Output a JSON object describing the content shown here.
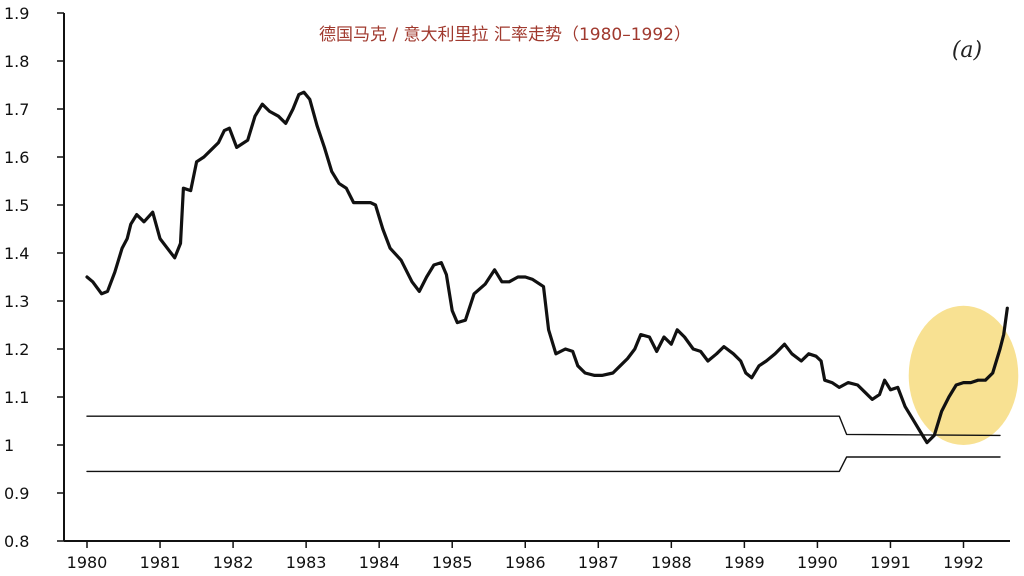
{
  "chart_data": {
    "type": "line",
    "title": "德国马克 / 意大利里拉 汇率走势（1980–1992）",
    "panel_label": "(a)",
    "xlabel": "",
    "ylabel": "",
    "xlim": [
      1980,
      1992.6
    ],
    "ylim": [
      0.8,
      1.9
    ],
    "x_ticks": [
      "1980",
      "1981",
      "1982",
      "1983",
      "1984",
      "1985",
      "1986",
      "1987",
      "1988",
      "1989",
      "1990",
      "1991",
      "1992"
    ],
    "y_ticks": [
      "0.8",
      "0.9",
      "1",
      "1.1",
      "1.2",
      "1.3",
      "1.4",
      "1.5",
      "1.6",
      "1.7",
      "1.8",
      "1.9"
    ],
    "grid": false,
    "highlight": {
      "type": "ellipse",
      "x_center": 1992.0,
      "y_center": 1.145,
      "x_radius": 0.75,
      "y_radius": 0.145,
      "color": "#f5d76e"
    },
    "series": [
      {
        "role": "exchange-rate",
        "points": [
          [
            1980.0,
            1.35
          ],
          [
            1980.08,
            1.34
          ],
          [
            1980.2,
            1.315
          ],
          [
            1980.28,
            1.32
          ],
          [
            1980.38,
            1.36
          ],
          [
            1980.48,
            1.41
          ],
          [
            1980.55,
            1.43
          ],
          [
            1980.6,
            1.46
          ],
          [
            1980.68,
            1.48
          ],
          [
            1980.78,
            1.465
          ],
          [
            1980.9,
            1.485
          ],
          [
            1981.0,
            1.43
          ],
          [
            1981.1,
            1.41
          ],
          [
            1981.2,
            1.39
          ],
          [
            1981.28,
            1.42
          ],
          [
            1981.32,
            1.535
          ],
          [
            1981.42,
            1.53
          ],
          [
            1981.5,
            1.59
          ],
          [
            1981.6,
            1.6
          ],
          [
            1981.7,
            1.615
          ],
          [
            1981.8,
            1.63
          ],
          [
            1981.88,
            1.655
          ],
          [
            1981.95,
            1.66
          ],
          [
            1982.05,
            1.62
          ],
          [
            1982.2,
            1.635
          ],
          [
            1982.3,
            1.685
          ],
          [
            1982.4,
            1.71
          ],
          [
            1982.5,
            1.695
          ],
          [
            1982.62,
            1.685
          ],
          [
            1982.72,
            1.67
          ],
          [
            1982.82,
            1.7
          ],
          [
            1982.9,
            1.73
          ],
          [
            1982.97,
            1.735
          ],
          [
            1983.05,
            1.72
          ],
          [
            1983.15,
            1.665
          ],
          [
            1983.25,
            1.62
          ],
          [
            1983.35,
            1.57
          ],
          [
            1983.45,
            1.545
          ],
          [
            1983.55,
            1.535
          ],
          [
            1983.65,
            1.505
          ],
          [
            1983.78,
            1.505
          ],
          [
            1983.88,
            1.505
          ],
          [
            1983.95,
            1.5
          ],
          [
            1984.05,
            1.45
          ],
          [
            1984.15,
            1.41
          ],
          [
            1984.3,
            1.385
          ],
          [
            1984.45,
            1.34
          ],
          [
            1984.55,
            1.32
          ],
          [
            1984.65,
            1.35
          ],
          [
            1984.75,
            1.375
          ],
          [
            1984.85,
            1.38
          ],
          [
            1984.92,
            1.355
          ],
          [
            1985.0,
            1.28
          ],
          [
            1985.07,
            1.255
          ],
          [
            1985.18,
            1.26
          ],
          [
            1985.3,
            1.315
          ],
          [
            1985.45,
            1.335
          ],
          [
            1985.58,
            1.365
          ],
          [
            1985.68,
            1.34
          ],
          [
            1985.78,
            1.34
          ],
          [
            1985.9,
            1.35
          ],
          [
            1986.0,
            1.35
          ],
          [
            1986.1,
            1.345
          ],
          [
            1986.25,
            1.33
          ],
          [
            1986.32,
            1.24
          ],
          [
            1986.42,
            1.19
          ],
          [
            1986.55,
            1.2
          ],
          [
            1986.65,
            1.195
          ],
          [
            1986.72,
            1.165
          ],
          [
            1986.82,
            1.15
          ],
          [
            1986.95,
            1.145
          ],
          [
            1987.05,
            1.145
          ],
          [
            1987.2,
            1.15
          ],
          [
            1987.3,
            1.165
          ],
          [
            1987.4,
            1.18
          ],
          [
            1987.5,
            1.2
          ],
          [
            1987.58,
            1.23
          ],
          [
            1987.7,
            1.225
          ],
          [
            1987.8,
            1.195
          ],
          [
            1987.9,
            1.225
          ],
          [
            1988.0,
            1.21
          ],
          [
            1988.08,
            1.24
          ],
          [
            1988.18,
            1.225
          ],
          [
            1988.3,
            1.2
          ],
          [
            1988.4,
            1.195
          ],
          [
            1988.5,
            1.175
          ],
          [
            1988.62,
            1.19
          ],
          [
            1988.72,
            1.205
          ],
          [
            1988.85,
            1.19
          ],
          [
            1988.95,
            1.175
          ],
          [
            1989.02,
            1.15
          ],
          [
            1989.1,
            1.14
          ],
          [
            1989.2,
            1.165
          ],
          [
            1989.3,
            1.175
          ],
          [
            1989.42,
            1.19
          ],
          [
            1989.55,
            1.21
          ],
          [
            1989.65,
            1.19
          ],
          [
            1989.78,
            1.175
          ],
          [
            1989.88,
            1.19
          ],
          [
            1989.98,
            1.185
          ],
          [
            1990.05,
            1.175
          ],
          [
            1990.1,
            1.135
          ],
          [
            1990.2,
            1.13
          ],
          [
            1990.3,
            1.12
          ],
          [
            1990.42,
            1.13
          ],
          [
            1990.55,
            1.125
          ],
          [
            1990.65,
            1.11
          ],
          [
            1990.75,
            1.095
          ],
          [
            1990.85,
            1.105
          ],
          [
            1990.92,
            1.135
          ],
          [
            1991.0,
            1.115
          ],
          [
            1991.1,
            1.12
          ],
          [
            1991.2,
            1.08
          ],
          [
            1991.3,
            1.055
          ],
          [
            1991.42,
            1.025
          ],
          [
            1991.5,
            1.005
          ],
          [
            1991.6,
            1.02
          ],
          [
            1991.7,
            1.07
          ],
          [
            1991.8,
            1.1
          ],
          [
            1991.9,
            1.125
          ],
          [
            1992.0,
            1.13
          ],
          [
            1992.1,
            1.13
          ],
          [
            1992.2,
            1.135
          ],
          [
            1992.3,
            1.135
          ],
          [
            1992.4,
            1.15
          ],
          [
            1992.5,
            1.2
          ],
          [
            1992.55,
            1.23
          ],
          [
            1992.6,
            1.285
          ]
        ]
      },
      {
        "role": "band-upper",
        "points": [
          [
            1980.0,
            1.06
          ],
          [
            1990.3,
            1.06
          ],
          [
            1990.4,
            1.022
          ],
          [
            1992.5,
            1.02
          ]
        ]
      },
      {
        "role": "band-lower",
        "points": [
          [
            1980.0,
            0.945
          ],
          [
            1990.3,
            0.945
          ],
          [
            1990.4,
            0.975
          ],
          [
            1992.5,
            0.975
          ]
        ]
      }
    ]
  }
}
